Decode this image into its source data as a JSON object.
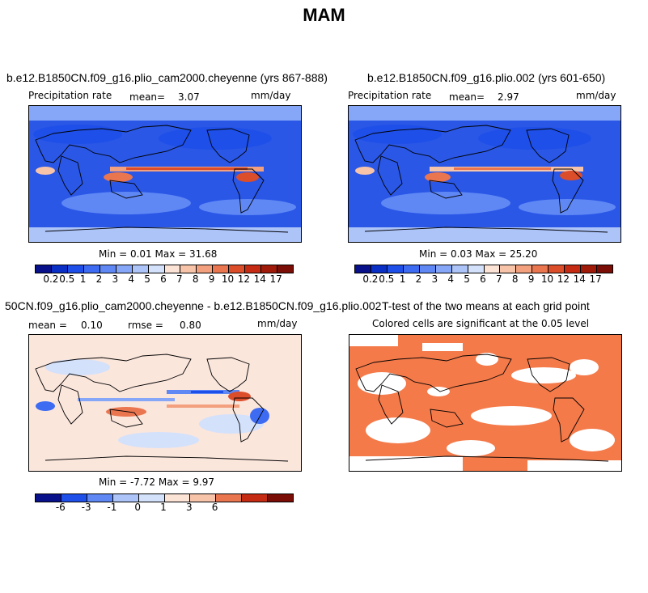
{
  "title": "MAM",
  "panels": [
    {
      "case": "b.e12.B1850CN.f09_g16.plio_cam2000.cheyenne (yrs 867-888)",
      "variable": "Precipitation rate",
      "stat_label": "mean=",
      "stat_value": "3.07",
      "units": "mm/day",
      "range": "Min =   0.01 Max =   31.68"
    },
    {
      "case": "b.e12.B1850CN.f09_g16.plio.002 (yrs 601-650)",
      "variable": "Precipitation rate",
      "stat_label": "mean=",
      "stat_value": "2.97",
      "units": "mm/day",
      "range": "Min =   0.03 Max =   25.20"
    },
    {
      "case": "50CN.f09_g16.plio_cam2000.cheyenne - b.e12.B1850CN.f09_g16.plio.002",
      "mean_label": "mean =",
      "mean_value": "0.10",
      "rmse_label": "rmse =",
      "rmse_value": "0.80",
      "units": "mm/day",
      "range": "Min =  -7.72 Max =    9.97"
    },
    {
      "case": "T-test of the two means at each grid point",
      "note": "Colored cells are significant at the 0.05 level"
    }
  ],
  "colorbar_precip": {
    "ticks": [
      "0.2",
      "0.5",
      "1",
      "2",
      "3",
      "4",
      "5",
      "6",
      "7",
      "8",
      "9",
      "10",
      "12",
      "14",
      "17"
    ],
    "colors": [
      "#08108a",
      "#0a2fc4",
      "#1e4fe8",
      "#3d6cf2",
      "#5f88f5",
      "#86a6f7",
      "#adc4f9",
      "#d4e1fb",
      "#fbe3d6",
      "#f7c4aa",
      "#f2a07d",
      "#ea7650",
      "#dc4d2a",
      "#c42b12",
      "#a01a0a",
      "#7a0d05"
    ]
  },
  "colorbar_diff": {
    "ticks": [
      "-6",
      "-3",
      "-1",
      "0",
      "1",
      "3",
      "6"
    ],
    "colors": [
      "#08108a",
      "#1e4fe8",
      "#5f88f5",
      "#adc4f9",
      "#d4e1fb",
      "#fbe3d6",
      "#f7c4aa",
      "#ea7650",
      "#c42b12",
      "#7a0d05"
    ]
  },
  "colors": {
    "ocean_blue": "#3d6cf2",
    "itcz_red": "#e05a3a",
    "diff_bg": "#fbe6dc",
    "ttest_orange": "#f47a4a"
  }
}
